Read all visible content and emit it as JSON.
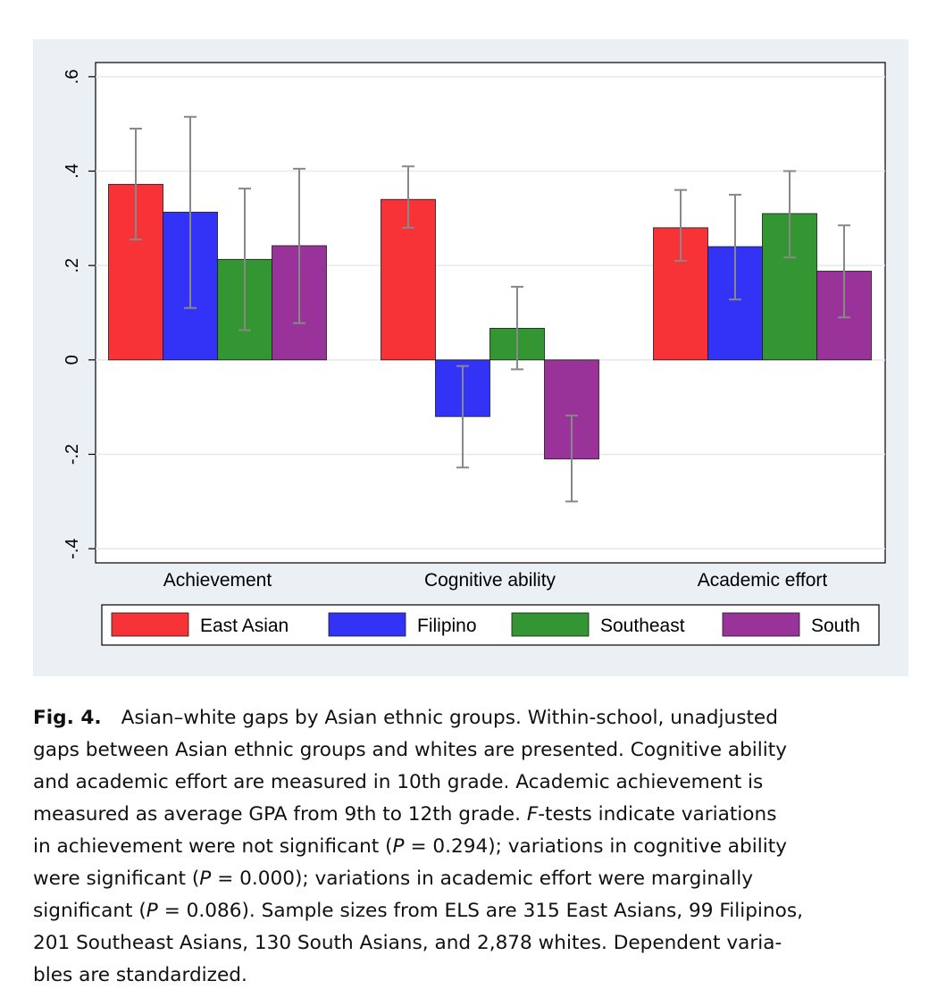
{
  "chart_data": {
    "type": "bar",
    "categories": [
      "Achievement",
      "Cognitive ability",
      "Academic effort"
    ],
    "series": [
      {
        "name": "East Asian",
        "color": "#f73338",
        "values": [
          0.372,
          0.34,
          0.28
        ],
        "ci_low": [
          0.255,
          0.28,
          0.21
        ],
        "ci_high": [
          0.49,
          0.41,
          0.36
        ]
      },
      {
        "name": "Filipino",
        "color": "#3333f7",
        "values": [
          0.313,
          -0.12,
          0.24
        ],
        "ci_low": [
          0.11,
          -0.228,
          0.128
        ],
        "ci_high": [
          0.515,
          -0.013,
          0.35
        ]
      },
      {
        "name": "Southeast",
        "color": "#339633",
        "values": [
          0.213,
          0.067,
          0.31
        ],
        "ci_low": [
          0.063,
          -0.02,
          0.217
        ],
        "ci_high": [
          0.363,
          0.155,
          0.4
        ]
      },
      {
        "name": "South",
        "color": "#993399",
        "values": [
          0.242,
          -0.21,
          0.188
        ],
        "ci_low": [
          0.078,
          -0.3,
          0.09
        ],
        "ci_high": [
          0.405,
          -0.118,
          0.285
        ]
      }
    ],
    "ylim": [
      -0.43,
      0.63
    ],
    "yticks": [
      -0.4,
      -0.2,
      0,
      0.2,
      0.4,
      0.6
    ],
    "ytick_labels": [
      "-.4",
      "-.2",
      "0",
      ".2",
      ".4",
      ".6"
    ],
    "xlabel": "",
    "ylabel": "",
    "grid": true,
    "legend_position": "bottom",
    "error_bar_color": "#888888"
  },
  "caption": {
    "label": "Fig. 4.",
    "line1": "Asian–white gaps by Asian ethnic groups. Within-school, unadjusted",
    "line2": "gaps between Asian ethnic groups and whites are presented. Cognitive ability",
    "line3": "and academic effort are measured in 10th grade. Academic achievement is",
    "line4a": "measured as average GPA from 9th to 12th grade. ",
    "line4_italic": "F",
    "line4b": "-tests indicate variations",
    "line5a": "in achievement were not significant (",
    "p_symbol": "P",
    "line5b": " = 0.294); variations in cognitive ability",
    "line6a": "were significant (",
    "line6b": " = 0.000); variations in academic effort were marginally",
    "line7a": "significant (",
    "line7b": " = 0.086). Sample sizes from ELS are 315 East Asians, 99 Filipinos,",
    "line8": "201 Southeast Asians, 130 South Asians, and 2,878 whites. Dependent varia-",
    "line9": "bles are standardized."
  }
}
